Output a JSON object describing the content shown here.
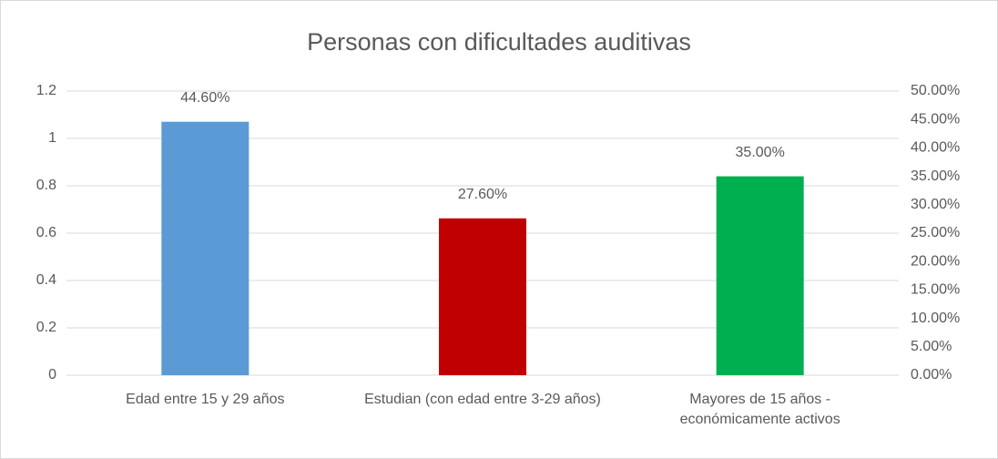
{
  "chart_data": {
    "type": "bar",
    "title": "Personas con dificultades auditivas",
    "categories": [
      "Edad entre 15 y 29 años",
      "Estudian (con edad entre 3-29 años)",
      "Mayores de 15 años - económicamente activos"
    ],
    "series": [
      {
        "axis": "y2",
        "values": [
          44.6,
          27.6,
          35.0
        ],
        "value_labels": [
          "44.60%",
          "27.60%",
          "35.00%"
        ],
        "colors": [
          "#5b9bd5",
          "#c00000",
          "#00b050"
        ]
      }
    ],
    "ylim": [
      0,
      1.2
    ],
    "yticks": [
      0,
      0.2,
      0.4,
      0.6,
      0.8,
      1,
      1.2
    ],
    "y2lim": [
      0,
      50
    ],
    "y2ticks": [
      {
        "value": 0,
        "label": "0.00%"
      },
      {
        "value": 5,
        "label": "5.00%"
      },
      {
        "value": 10,
        "label": "10.00%"
      },
      {
        "value": 15,
        "label": "15.00%"
      },
      {
        "value": 20,
        "label": "20.00%"
      },
      {
        "value": 25,
        "label": "25.00%"
      },
      {
        "value": 30,
        "label": "30.00%"
      },
      {
        "value": 35,
        "label": "35.00%"
      },
      {
        "value": 40,
        "label": "40.00%"
      },
      {
        "value": 45,
        "label": "45.00%"
      },
      {
        "value": 50,
        "label": "50.00%"
      }
    ],
    "grid": true
  }
}
